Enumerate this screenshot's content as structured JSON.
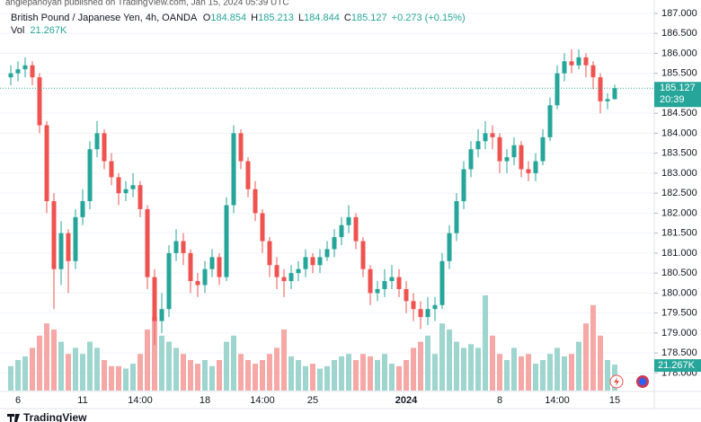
{
  "chart_data": {
    "type": "candlestick",
    "published": "anglepanoyan published on TradingView.com, Jan 15, 2024 05:39 UTC",
    "title": "British Pound / Japanese Yen, 4h, OANDA",
    "ohlc_prefixes": [
      "O",
      "H",
      "L",
      "C"
    ],
    "change": "+0.273 (+0.15%)",
    "volume_name": "Vol",
    "volume_label": "21.267K",
    "countdown": "20:39",
    "brand": "TradingView",
    "up_color": "#26a69a",
    "down_color": "#ef5350",
    "volume_up_color": "#9ed5cf",
    "volume_down_color": "#f6a8a6",
    "grid": true,
    "ylim": [
      177.56,
      187.11
    ],
    "yticks": [
      {
        "value": 178,
        "label": "178.000"
      },
      {
        "value": 178.5,
        "label": "178.500"
      },
      {
        "value": 179,
        "label": "179.000"
      },
      {
        "value": 179.5,
        "label": "179.500"
      },
      {
        "value": 180,
        "label": "180.000"
      },
      {
        "value": 180.5,
        "label": "180.500"
      },
      {
        "value": 181,
        "label": "181.000"
      },
      {
        "value": 181.5,
        "label": "181.500"
      },
      {
        "value": 182,
        "label": "182.000"
      },
      {
        "value": 182.5,
        "label": "182.500"
      },
      {
        "value": 183,
        "label": "183.000"
      },
      {
        "value": 183.5,
        "label": "183.500"
      },
      {
        "value": 184,
        "label": "184.000"
      },
      {
        "value": 184.5,
        "label": "184.500"
      },
      {
        "value": 185,
        "label": "185.000"
      },
      {
        "value": 185.5,
        "label": "185.500"
      },
      {
        "value": 186,
        "label": "186.000"
      },
      {
        "value": 186.5,
        "label": "186.500"
      },
      {
        "value": 187,
        "label": "187.000"
      }
    ],
    "categories": [
      null,
      "6",
      null,
      null,
      null,
      null,
      null,
      null,
      null,
      null,
      "11",
      null,
      null,
      null,
      null,
      null,
      null,
      null,
      "14:00",
      null,
      null,
      null,
      null,
      null,
      null,
      null,
      null,
      "18",
      null,
      null,
      null,
      null,
      null,
      null,
      null,
      "14:00",
      null,
      null,
      null,
      null,
      null,
      null,
      "25",
      null,
      null,
      null,
      null,
      null,
      null,
      null,
      null,
      null,
      null,
      null,
      null,
      "2024",
      null,
      null,
      null,
      null,
      null,
      null,
      null,
      null,
      null,
      null,
      null,
      null,
      "8",
      null,
      null,
      null,
      null,
      null,
      null,
      null,
      "14:00",
      null,
      null,
      null,
      null,
      null,
      null,
      null,
      "15"
    ],
    "open": [
      185.4,
      185.5,
      185.6,
      185.7,
      185.4,
      184.2,
      182.3,
      180.6,
      181.5,
      180.8,
      181.9,
      182.3,
      183.6,
      184.0,
      183.3,
      182.9,
      182.5,
      182.6,
      182.7,
      182.1,
      180.4,
      179.3,
      179.6,
      181.0,
      181.3,
      181.0,
      180.3,
      180.2,
      180.6,
      180.9,
      180.4,
      182.2,
      184.0,
      183.3,
      182.6,
      182.0,
      181.3,
      180.7,
      180.4,
      180.3,
      180.5,
      180.6,
      180.9,
      180.7,
      180.9,
      181.1,
      181.4,
      181.7,
      181.9,
      181.3,
      180.6,
      180.0,
      180.1,
      180.3,
      180.4,
      180.1,
      179.8,
      179.6,
      179.4,
      179.6,
      179.7,
      180.8,
      181.5,
      182.3,
      183.1,
      183.6,
      183.8,
      184.0,
      183.9,
      183.3,
      183.4,
      183.7,
      183.1,
      183.0,
      183.3,
      183.9,
      184.7,
      185.5,
      185.8,
      185.7,
      185.9,
      185.7,
      185.4,
      184.8,
      184.854
    ],
    "high": [
      185.7,
      185.8,
      185.9,
      185.8,
      185.5,
      184.3,
      182.5,
      181.8,
      181.6,
      182.1,
      182.6,
      183.8,
      184.3,
      184.1,
      183.5,
      183.0,
      182.8,
      183.0,
      182.8,
      182.2,
      180.6,
      180.0,
      181.2,
      181.6,
      181.5,
      181.1,
      180.5,
      180.8,
      181.1,
      181.0,
      182.4,
      184.2,
      184.1,
      183.4,
      182.8,
      182.1,
      181.4,
      180.9,
      180.6,
      180.7,
      180.8,
      181.1,
      181.0,
      181.1,
      181.3,
      181.6,
      181.9,
      182.2,
      182.0,
      181.4,
      180.7,
      180.3,
      180.6,
      180.7,
      180.6,
      180.3,
      180.0,
      179.8,
      179.9,
      179.9,
      181.0,
      181.7,
      182.5,
      183.3,
      183.8,
      184.1,
      184.3,
      184.2,
      184.0,
      183.6,
      183.9,
      183.8,
      183.3,
      183.5,
      184.1,
      184.9,
      185.7,
      186.0,
      186.1,
      186.1,
      186.0,
      185.8,
      185.5,
      185.0,
      185.213
    ],
    "low": [
      185.2,
      185.3,
      185.4,
      185.2,
      184.0,
      182.0,
      179.6,
      180.2,
      180.0,
      180.6,
      181.7,
      182.1,
      183.4,
      183.1,
      182.7,
      182.2,
      182.3,
      182.4,
      181.9,
      180.1,
      178.7,
      179.0,
      179.4,
      180.8,
      180.7,
      180.0,
      179.9,
      180.0,
      180.4,
      180.2,
      180.3,
      182.0,
      183.1,
      182.4,
      181.8,
      181.0,
      180.4,
      180.1,
      179.9,
      180.1,
      180.3,
      180.4,
      180.5,
      180.5,
      180.8,
      180.9,
      181.2,
      181.5,
      181.1,
      180.4,
      179.7,
      179.8,
      179.9,
      180.1,
      179.9,
      179.5,
      179.3,
      179.1,
      179.2,
      179.3,
      179.6,
      180.6,
      181.3,
      182.1,
      182.9,
      183.4,
      183.6,
      183.6,
      183.0,
      183.0,
      183.2,
      182.9,
      182.8,
      182.8,
      183.2,
      183.8,
      184.6,
      185.3,
      185.5,
      185.6,
      185.4,
      185.1,
      184.5,
      184.6,
      184.844
    ],
    "close": [
      185.5,
      185.6,
      185.7,
      185.4,
      184.2,
      182.3,
      180.6,
      181.5,
      180.8,
      181.9,
      182.3,
      183.6,
      184.0,
      183.3,
      182.9,
      182.5,
      182.6,
      182.7,
      182.1,
      180.4,
      179.3,
      179.6,
      181.0,
      181.3,
      181.0,
      180.3,
      180.2,
      180.6,
      180.9,
      180.4,
      182.2,
      184.0,
      183.3,
      182.6,
      182.0,
      181.3,
      180.7,
      180.4,
      180.3,
      180.5,
      180.6,
      180.9,
      180.7,
      180.9,
      181.1,
      181.4,
      181.7,
      181.9,
      181.3,
      180.6,
      180.0,
      180.1,
      180.3,
      180.4,
      180.1,
      179.8,
      179.6,
      179.4,
      179.6,
      179.7,
      180.8,
      181.5,
      182.3,
      183.1,
      183.6,
      183.8,
      184.0,
      183.9,
      183.3,
      183.4,
      183.7,
      183.1,
      183.0,
      183.3,
      183.9,
      184.7,
      185.5,
      185.8,
      185.7,
      185.9,
      185.7,
      185.4,
      184.8,
      184.854,
      185.127
    ],
    "volume": [
      20,
      25,
      28,
      35,
      45,
      55,
      50,
      40,
      30,
      35,
      30,
      40,
      35,
      25,
      20,
      20,
      18,
      22,
      30,
      50,
      60,
      45,
      40,
      35,
      30,
      25,
      22,
      25,
      20,
      25,
      40,
      45,
      30,
      25,
      22,
      25,
      30,
      35,
      50,
      28,
      25,
      20,
      22,
      18,
      20,
      25,
      28,
      30,
      25,
      30,
      28,
      25,
      30,
      22,
      20,
      25,
      35,
      40,
      45,
      30,
      55,
      50,
      40,
      35,
      38,
      35,
      78,
      45,
      30,
      25,
      35,
      28,
      30,
      22,
      25,
      30,
      35,
      28,
      30,
      40,
      55,
      70,
      45,
      25,
      21.267
    ]
  }
}
